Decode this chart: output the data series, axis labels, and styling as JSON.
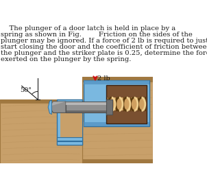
{
  "text_lines": [
    "    The plunger of a door latch is held in place by a",
    "spring as shown in Fig.        Friction on the sides of the",
    "plunger may be ignored. If a force of 2 lb is required to just",
    "start closing the door and the coefficient of friction between",
    "the plunger and the striker plate is 0.25, determine the force",
    "exerted on the plunger by the spring."
  ],
  "force_label": "2 lb",
  "angle_label": "50°",
  "wood_tan": "#c8a06a",
  "wood_light": "#d4ad7a",
  "wood_dark": "#a07840",
  "wood_grain": "#b8905a",
  "blue_light": "#7ab8e0",
  "blue_mid": "#5090c0",
  "blue_dark": "#3070a0",
  "gray_light": "#c0c0c0",
  "gray_mid": "#909090",
  "gray_dark": "#505050",
  "brown_dark": "#7a5030",
  "spring_tan": "#d0a060",
  "spring_light": "#f0d090",
  "arrow_color": "#cc1111",
  "black": "#1a1a1a",
  "white": "#ffffff",
  "bg_color": "#ffffff",
  "text_fontsize": 7.2,
  "label_fontsize": 7.0
}
